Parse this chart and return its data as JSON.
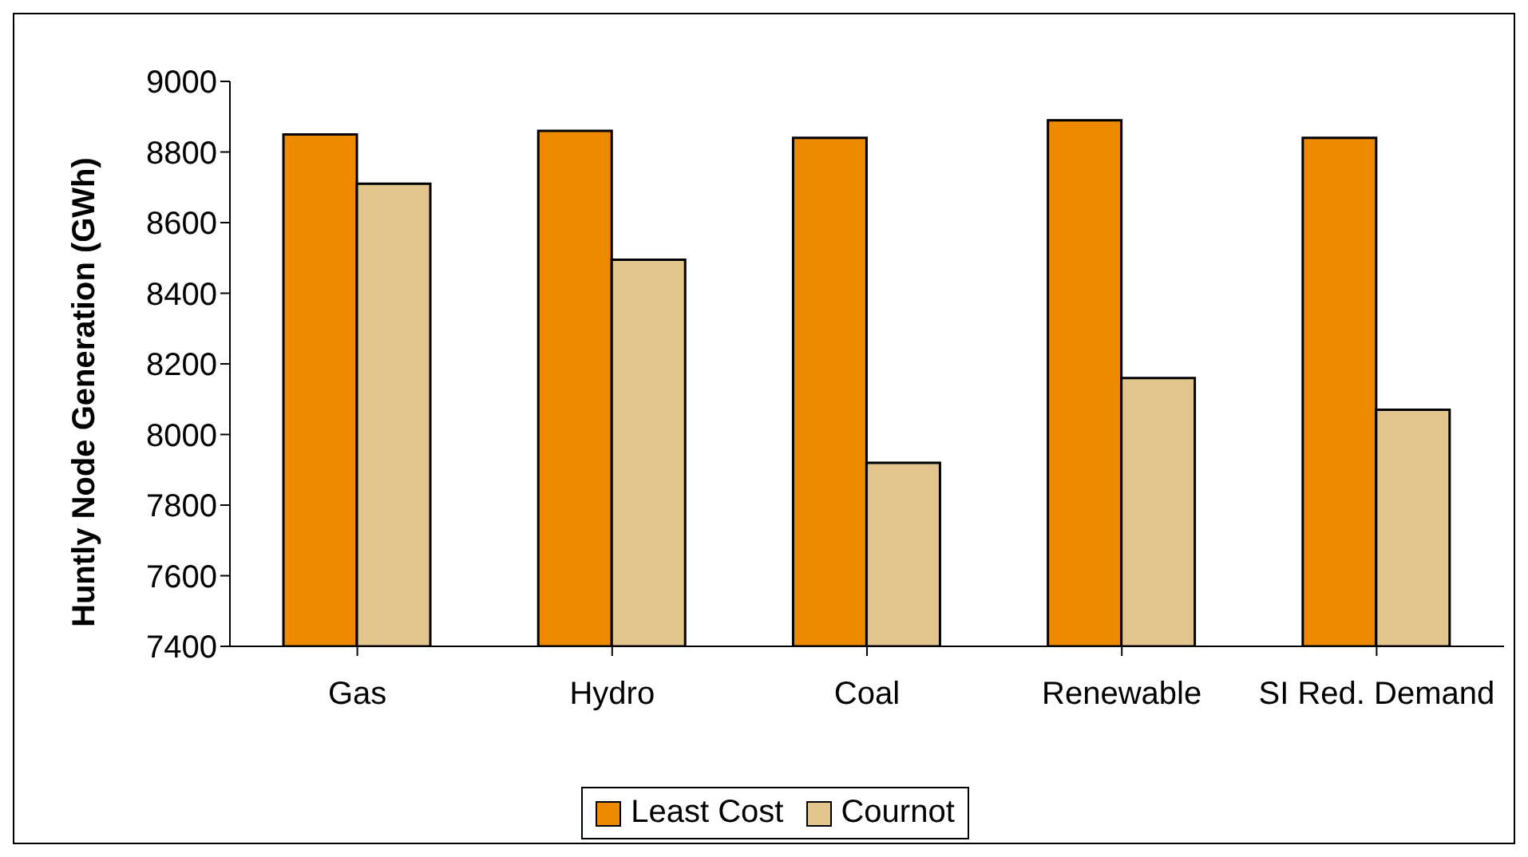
{
  "chart_data": {
    "type": "bar",
    "ylabel": "Huntly Node Generation (GWh)",
    "categories": [
      "Gas",
      "Hydro",
      "Coal",
      "Renewable",
      "SI Red. Demand"
    ],
    "series": [
      {
        "name": "Least Cost",
        "color": "#ed8a00",
        "values": [
          8850,
          8860,
          8840,
          8890,
          8840
        ]
      },
      {
        "name": "Cournot",
        "color": "#e1c58c",
        "values": [
          8710,
          8495,
          7920,
          8160,
          8070
        ]
      }
    ],
    "ylim": [
      7400,
      9000
    ],
    "yticks": [
      7400,
      7600,
      7800,
      8000,
      8200,
      8400,
      8600,
      8800,
      9000
    ],
    "grid": false,
    "legend": "bottom"
  }
}
